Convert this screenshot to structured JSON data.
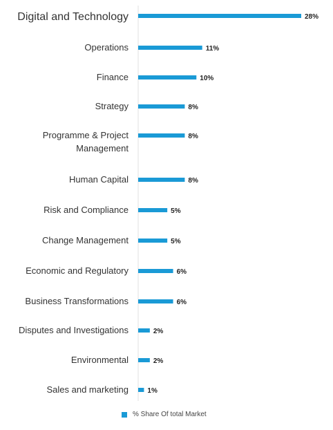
{
  "chart_data": {
    "type": "bar",
    "orientation": "horizontal",
    "categories": [
      "Digital and Technology",
      "Operations",
      "Finance",
      "Strategy",
      "Programme & Project Management",
      "Human Capital",
      "Risk and Compliance",
      "Change Management",
      "Economic and Regulatory",
      "Business Transformations",
      "Disputes and Investigations",
      "Environmental",
      "Sales and marketing"
    ],
    "values": [
      28,
      11,
      10,
      8,
      8,
      8,
      5,
      5,
      6,
      6,
      2,
      2,
      1
    ],
    "value_labels": [
      "28%",
      "11%",
      "10%",
      "8%",
      "8%",
      "8%",
      "5%",
      "5%",
      "6%",
      "6%",
      "2%",
      "2%",
      "1%"
    ],
    "series": [
      {
        "name": "% Share Of total Market",
        "values": [
          28,
          11,
          10,
          8,
          8,
          8,
          5,
          5,
          6,
          6,
          2,
          2,
          1
        ]
      }
    ],
    "legend_position": "bottom",
    "bar_color": "#1a9ad6",
    "axis_color": "#e2e2e2",
    "grid": false,
    "xlim": [
      0,
      28
    ]
  },
  "legend": {
    "label": "% Share Of total Market"
  }
}
